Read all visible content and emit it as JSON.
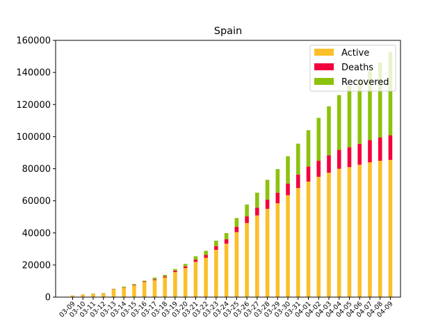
{
  "chart_data": {
    "type": "bar",
    "stacked": true,
    "title": "Spain",
    "xlabel": "",
    "ylabel": "",
    "ylim": [
      0,
      160000
    ],
    "yticks": [
      0,
      20000,
      40000,
      60000,
      80000,
      100000,
      120000,
      140000,
      160000
    ],
    "grid": false,
    "legend_position": "top-right",
    "categories": [
      "03-09",
      "03-10",
      "03-11",
      "03-12",
      "03-13",
      "03-14",
      "03-15",
      "03-16",
      "03-17",
      "03-18",
      "03-19",
      "03-20",
      "03-21",
      "03-22",
      "03-23",
      "03-24",
      "03-25",
      "03-26",
      "03-27",
      "03-28",
      "03-29",
      "03-30",
      "03-31",
      "04-01",
      "04-02",
      "04-03",
      "04-04",
      "04-05",
      "04-06",
      "04-07",
      "04-08",
      "04-09"
    ],
    "series": [
      {
        "name": "Active",
        "color": "#fbbf2b",
        "values": [
          1000,
          1600,
          2000,
          2200,
          4900,
          5800,
          7300,
          9400,
          10600,
          12200,
          15600,
          18100,
          22000,
          24500,
          29500,
          33300,
          40500,
          46200,
          50900,
          55000,
          58500,
          63500,
          68000,
          72000,
          75000,
          77500,
          80000,
          81000,
          82500,
          84000,
          85000,
          85500
        ]
      },
      {
        "name": "Deaths",
        "color": "#f2003c",
        "values": [
          30,
          35,
          55,
          85,
          130,
          195,
          290,
          340,
          530,
          630,
          830,
          1040,
          1380,
          1750,
          2300,
          2800,
          3400,
          4100,
          4900,
          5800,
          6600,
          7300,
          8400,
          9400,
          10000,
          10900,
          11700,
          12400,
          13000,
          13800,
          14500,
          15300
        ]
      },
      {
        "name": "Recovered",
        "color": "#8cc20d",
        "values": [
          30,
          35,
          180,
          190,
          190,
          520,
          530,
          530,
          1030,
          1080,
          1100,
          1590,
          2100,
          2600,
          3400,
          3800,
          5400,
          7400,
          9300,
          12300,
          14700,
          17000,
          19200,
          22600,
          26700,
          30500,
          34200,
          38000,
          40300,
          43100,
          46700,
          52000
        ]
      }
    ]
  }
}
